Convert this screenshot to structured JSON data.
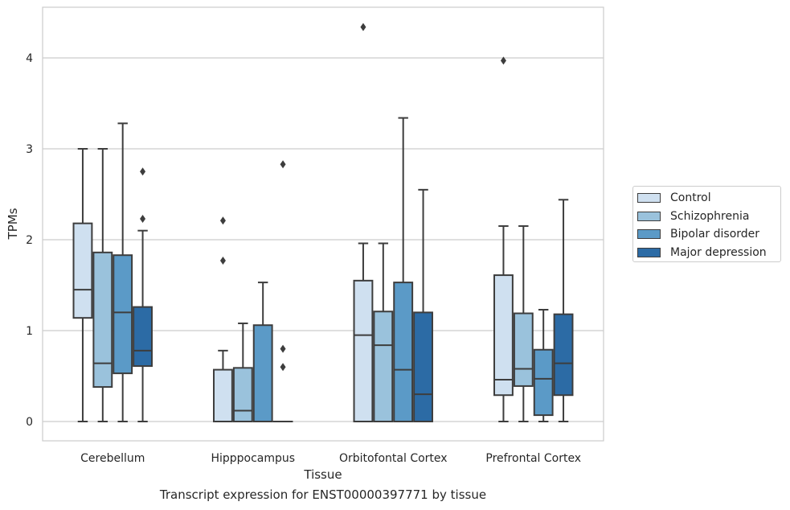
{
  "chart_data": {
    "type": "boxplot",
    "title": "",
    "caption": "Transcript expression for ENST00000397771 by tissue",
    "xlabel": "Tissue",
    "ylabel": "TPMs",
    "ylim": [
      -0.2,
      4.55
    ],
    "yticks": [
      0,
      1,
      2,
      3,
      4
    ],
    "categories": [
      "Cerebellum",
      "Hipppocampus",
      "Orbitofontal Cortex",
      "Prefrontal Cortex"
    ],
    "grid": true,
    "legend_position": "right",
    "series": [
      {
        "name": "Control",
        "color": "#cfe0f0",
        "boxes": [
          {
            "min": 0.0,
            "q1": 1.14,
            "median": 1.45,
            "q3": 2.18,
            "max": 3.0,
            "outliers": []
          },
          {
            "min": 0.0,
            "q1": 0.0,
            "median": 0.0,
            "q3": 0.57,
            "max": 0.78,
            "outliers": [
              1.77,
              2.21
            ]
          },
          {
            "min": 0.0,
            "q1": 0.0,
            "median": 0.95,
            "q3": 1.55,
            "max": 1.96,
            "outliers": [
              4.34
            ]
          },
          {
            "min": 0.0,
            "q1": 0.29,
            "median": 0.46,
            "q3": 1.61,
            "max": 2.15,
            "outliers": [
              3.97
            ]
          }
        ]
      },
      {
        "name": "Schizophrenia",
        "color": "#9ac2dc",
        "boxes": [
          {
            "min": 0.0,
            "q1": 0.38,
            "median": 0.64,
            "q3": 1.86,
            "max": 3.0,
            "outliers": []
          },
          {
            "min": 0.0,
            "q1": 0.0,
            "median": 0.12,
            "q3": 0.59,
            "max": 1.08,
            "outliers": []
          },
          {
            "min": 0.0,
            "q1": 0.0,
            "median": 0.84,
            "q3": 1.21,
            "max": 1.96,
            "outliers": []
          },
          {
            "min": 0.0,
            "q1": 0.39,
            "median": 0.58,
            "q3": 1.19,
            "max": 2.15,
            "outliers": []
          }
        ]
      },
      {
        "name": "Bipolar disorder",
        "color": "#5b9ac7",
        "boxes": [
          {
            "min": 0.0,
            "q1": 0.53,
            "median": 1.2,
            "q3": 1.83,
            "max": 3.28,
            "outliers": []
          },
          {
            "min": 0.0,
            "q1": 0.0,
            "median": 0.0,
            "q3": 1.06,
            "max": 1.53,
            "outliers": []
          },
          {
            "min": 0.0,
            "q1": 0.0,
            "median": 0.57,
            "q3": 1.53,
            "max": 3.34,
            "outliers": []
          },
          {
            "min": 0.0,
            "q1": 0.07,
            "median": 0.47,
            "q3": 0.79,
            "max": 1.23,
            "outliers": []
          }
        ]
      },
      {
        "name": "Major depression",
        "color": "#2c6ba5",
        "boxes": [
          {
            "min": 0.0,
            "q1": 0.61,
            "median": 0.78,
            "q3": 1.26,
            "max": 2.1,
            "outliers": [
              2.23,
              2.75
            ]
          },
          {
            "min": 0.0,
            "q1": 0.0,
            "median": 0.0,
            "q3": 0.0,
            "max": 0.0,
            "outliers": [
              0.6,
              0.8,
              2.83
            ]
          },
          {
            "min": 0.0,
            "q1": 0.0,
            "median": 0.3,
            "q3": 1.2,
            "max": 2.55,
            "outliers": []
          },
          {
            "min": 0.0,
            "q1": 0.29,
            "median": 0.64,
            "q3": 1.18,
            "max": 2.44,
            "outliers": []
          }
        ]
      }
    ]
  }
}
